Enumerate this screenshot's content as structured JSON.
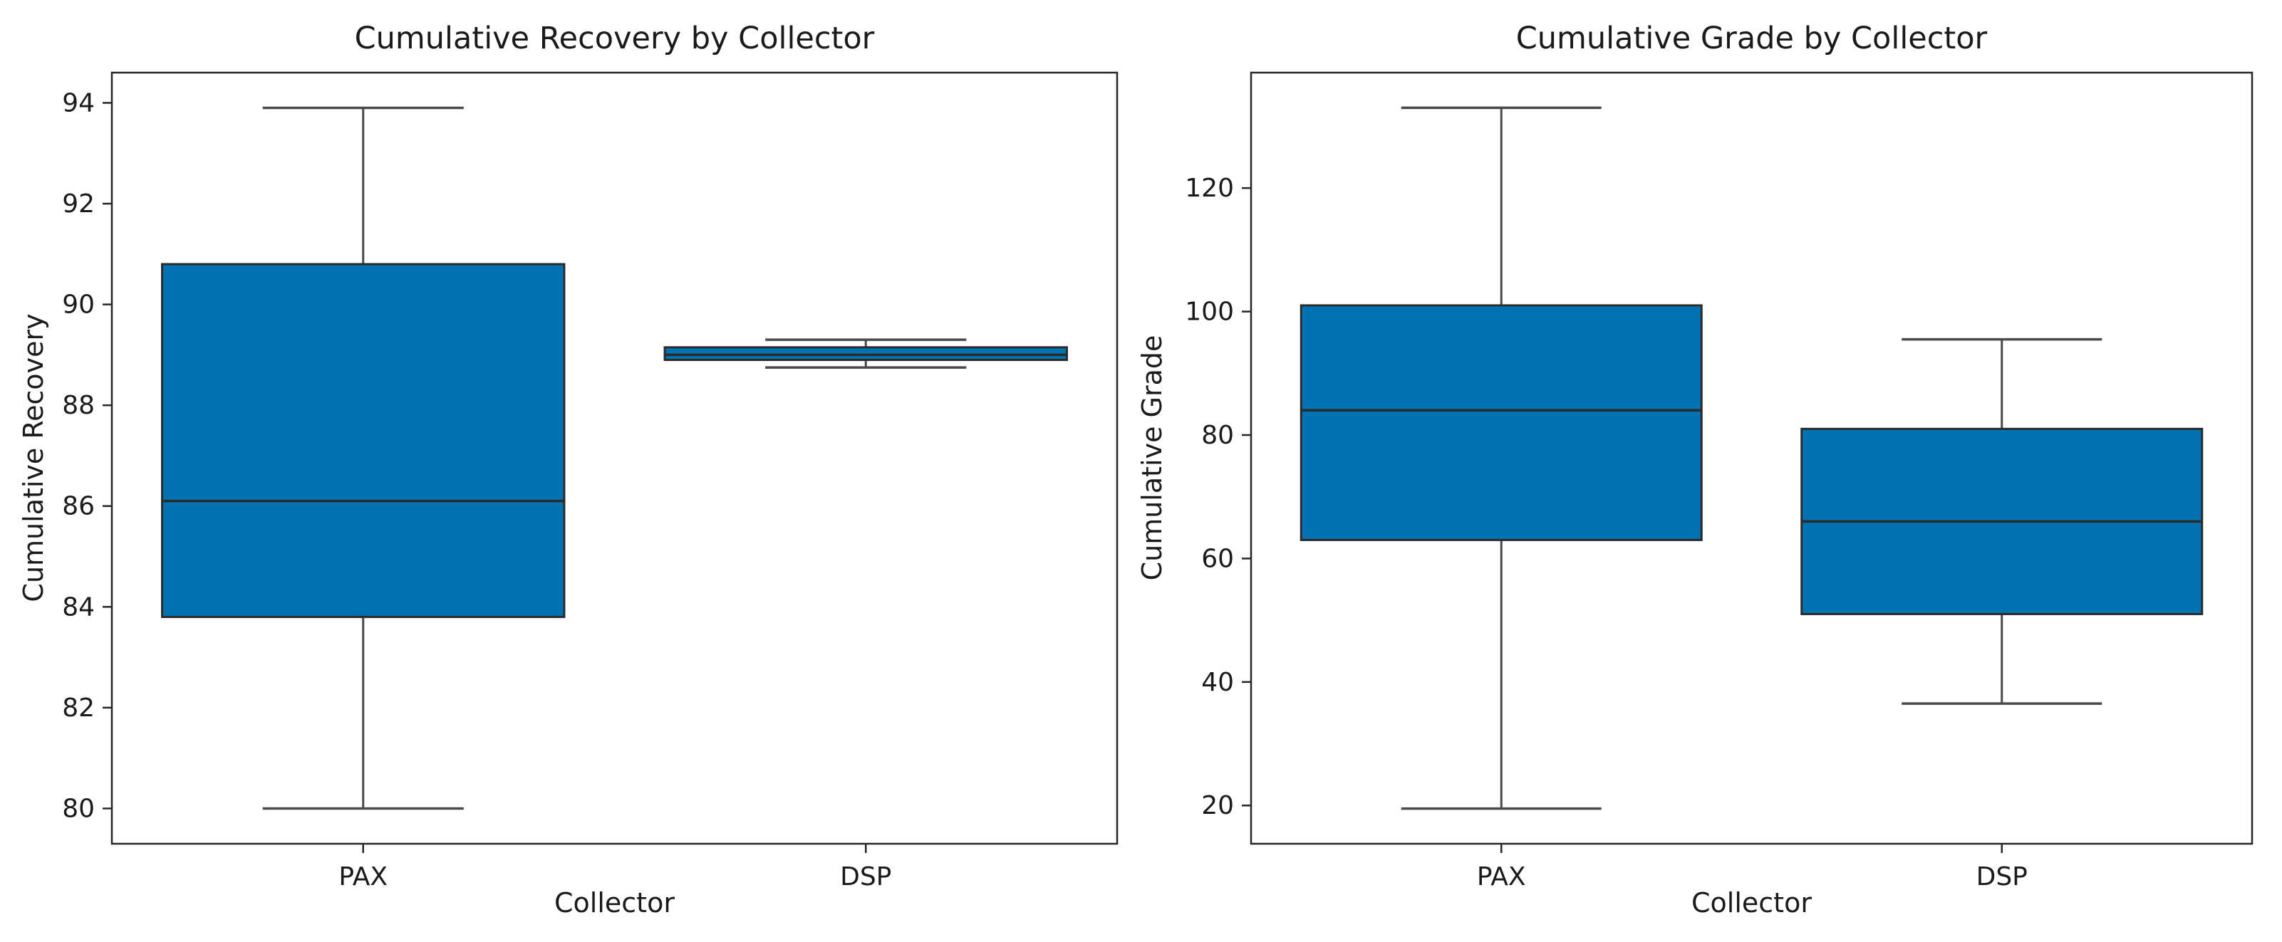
{
  "figure": {
    "background_color": "#ffffff",
    "text_color": "#1a1a1a",
    "box_fill_color": "#0173b2",
    "box_edge_color": "#2b2b2b",
    "median_color": "#2b2b2b",
    "whisker_color": "#4a4a4a",
    "spine_color": "#262626"
  },
  "chart_data": [
    {
      "type": "box",
      "title": "Cumulative Recovery by Collector",
      "xlabel": "Collector",
      "ylabel": "Cumulative Recovery",
      "categories": [
        "PAX",
        "DSP"
      ],
      "yticks": [
        80,
        82,
        84,
        86,
        88,
        90,
        92,
        94
      ],
      "ylim": [
        79.3,
        94.6
      ],
      "grid": false,
      "legend": "none",
      "series": [
        {
          "category": "PAX",
          "whisker_low": 80.0,
          "q1": 83.8,
          "median": 86.1,
          "q3": 90.8,
          "whisker_high": 93.9
        },
        {
          "category": "DSP",
          "whisker_low": 88.75,
          "q1": 88.9,
          "median": 89.0,
          "q3": 89.15,
          "whisker_high": 89.3
        }
      ]
    },
    {
      "type": "box",
      "title": "Cumulative Grade by Collector",
      "xlabel": "Collector",
      "ylabel": "Cumulative Grade",
      "categories": [
        "PAX",
        "DSP"
      ],
      "yticks": [
        20,
        40,
        60,
        80,
        100,
        120
      ],
      "ylim": [
        13.8,
        138.7
      ],
      "grid": false,
      "legend": "none",
      "series": [
        {
          "category": "PAX",
          "whisker_low": 19.5,
          "q1": 63.0,
          "median": 84.0,
          "q3": 101.0,
          "whisker_high": 133.0
        },
        {
          "category": "DSP",
          "whisker_low": 36.5,
          "q1": 51.0,
          "median": 66.0,
          "q3": 81.0,
          "whisker_high": 95.5
        }
      ]
    }
  ]
}
